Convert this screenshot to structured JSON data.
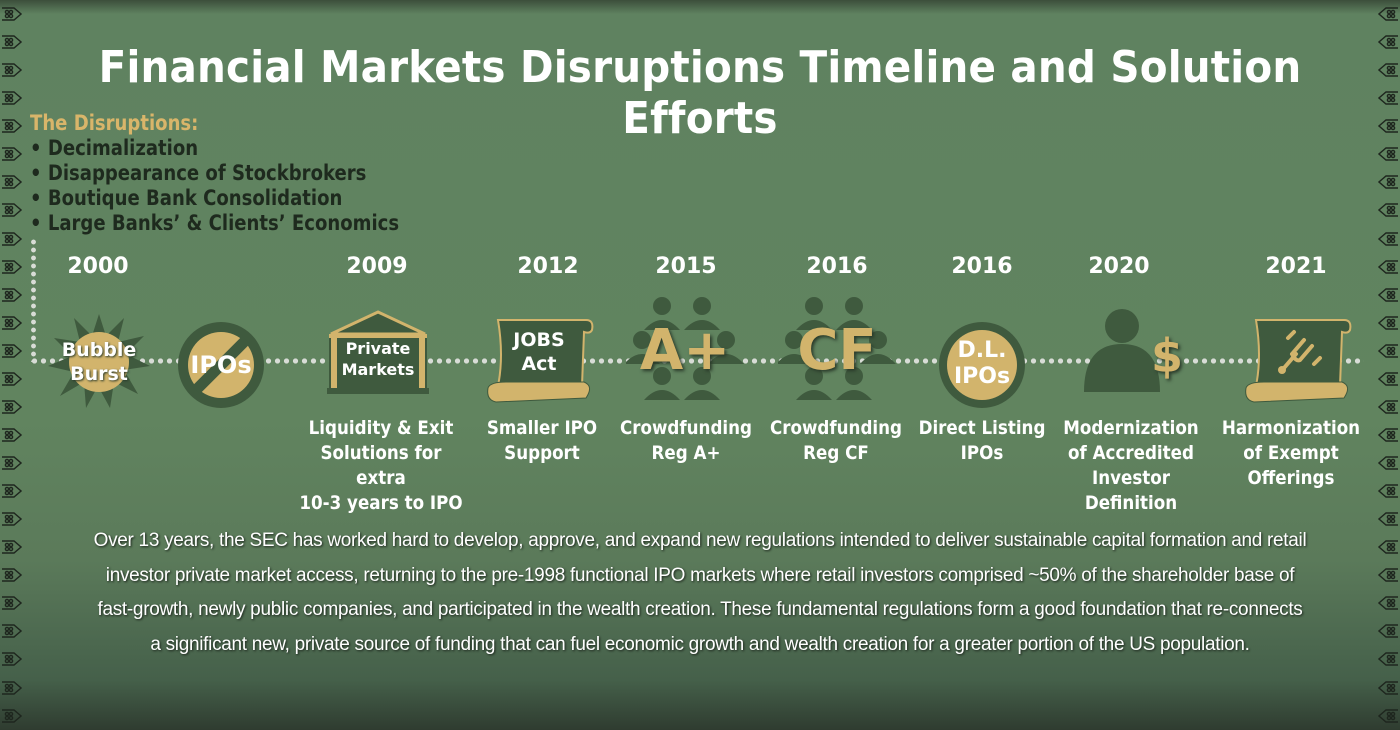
{
  "title": "Financial Markets Disruptions Timeline and Solution Efforts",
  "disruptions": {
    "heading": "The Disruptions:",
    "items": [
      "• Decimalization",
      "• Disappearance of Stockbrokers",
      "• Boutique Bank Consolidation",
      "• Large Banks’ & Clients’ Economics"
    ]
  },
  "colors": {
    "background": "#61845f",
    "dark_green": "#3f5a3e",
    "gold": "#d2b46c",
    "heading_gold": "#d9b56a",
    "text_dark": "#1e2a1e",
    "dots": "#d8dcd6"
  },
  "timeline": [
    {
      "year": "2000",
      "icon": "bubble-burst-icon",
      "icon_text": [
        "Bubble",
        "Burst"
      ],
      "label": []
    },
    {
      "year": "",
      "icon": "no-ipos-icon",
      "icon_text": [
        "IPOs"
      ],
      "label": []
    },
    {
      "year": "2009",
      "icon": "private-markets-building-icon",
      "icon_text": [
        "Private",
        "Markets"
      ],
      "label": [
        "Liquidity & Exit",
        "Solutions for extra",
        "10-3 years to IPO"
      ]
    },
    {
      "year": "2012",
      "icon": "jobs-act-scroll-icon",
      "icon_text": [
        "JOBS",
        "Act"
      ],
      "label": [
        "Smaller IPO",
        "Support"
      ]
    },
    {
      "year": "2015",
      "icon": "crowd-a-plus-icon",
      "icon_text": [
        "A+"
      ],
      "label": [
        "Crowdfunding",
        "Reg A+"
      ]
    },
    {
      "year": "2016",
      "icon": "crowd-cf-icon",
      "icon_text": [
        "CF"
      ],
      "label": [
        "Crowdfunding",
        "Reg CF"
      ]
    },
    {
      "year": "2016",
      "icon": "direct-listing-ipos-icon",
      "icon_text": [
        "D.L.",
        "IPOs"
      ],
      "label": [
        "Direct Listing",
        "IPOs"
      ]
    },
    {
      "year": "2020",
      "icon": "accredited-investor-dollar-icon",
      "icon_text": [
        "$"
      ],
      "label": [
        "Modernization",
        "of Accredited",
        "Investor Definition"
      ]
    },
    {
      "year": "2021",
      "icon": "tuning-fork-scroll-icon",
      "icon_text": [],
      "label": [
        "Harmonization",
        "of Exempt",
        "Offerings"
      ]
    }
  ],
  "summary": "Over 13 years, the SEC has worked hard to develop, approve, and expand new regulations intended to deliver sustainable capital formation and retail investor private market access, returning to the pre-1998 functional IPO markets where retail investors comprised ~50% of the shareholder base of fast-growth, newly public companies, and participated in the wealth creation. These fundamental regulations form a good foundation that re-connects a significant new, private source of funding that can fuel economic growth and wealth creation for a greater portion of the US population."
}
